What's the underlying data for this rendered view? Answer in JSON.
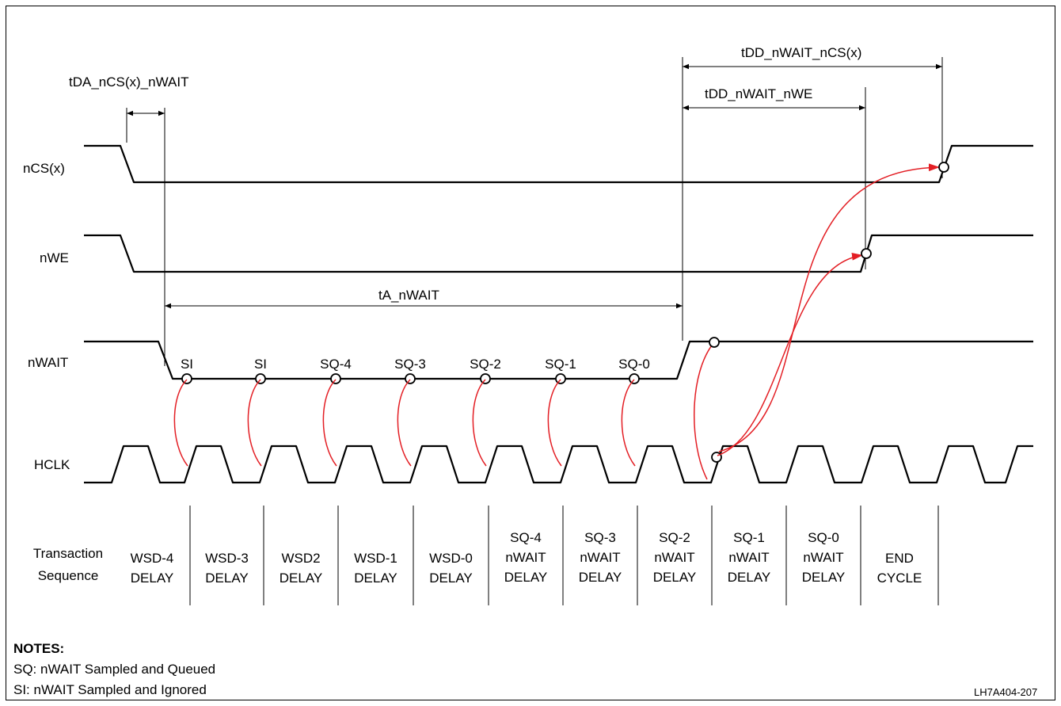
{
  "signals": {
    "ncs": "nCS(x)",
    "nwe": "nWE",
    "nwait": "nWAIT",
    "hclk": "HCLK"
  },
  "timings": {
    "tda": "tDA_nCS(x)_nWAIT",
    "ta": "tA_nWAIT",
    "tdd_nwe": "tDD_nWAIT_nWE",
    "tdd_ncs": "tDD_nWAIT_nCS(x)"
  },
  "samples": [
    "SI",
    "SI",
    "SQ-4",
    "SQ-3",
    "SQ-2",
    "SQ-1",
    "SQ-0"
  ],
  "transaction": {
    "label_line1": "Transaction",
    "label_line2": "Sequence",
    "cells": [
      [
        "WSD-4",
        "DELAY"
      ],
      [
        "WSD-3",
        "DELAY"
      ],
      [
        "WSD2",
        "DELAY"
      ],
      [
        "WSD-1",
        "DELAY"
      ],
      [
        "WSD-0",
        "DELAY"
      ],
      [
        "SQ-4",
        "nWAIT",
        "DELAY"
      ],
      [
        "SQ-3",
        "nWAIT",
        "DELAY"
      ],
      [
        "SQ-2",
        "nWAIT",
        "DELAY"
      ],
      [
        "SQ-1",
        "nWAIT",
        "DELAY"
      ],
      [
        "SQ-0",
        "nWAIT",
        "DELAY"
      ],
      [
        "END",
        "CYCLE"
      ]
    ]
  },
  "notes": {
    "title": "NOTES:",
    "items": [
      "SQ: nWAIT Sampled and Queued",
      "SI: nWAIT Sampled and Ignored"
    ]
  },
  "figure_id": "LH7A404-207",
  "colors": {
    "causal_arrow": "#e31e24",
    "line": "#000000"
  }
}
